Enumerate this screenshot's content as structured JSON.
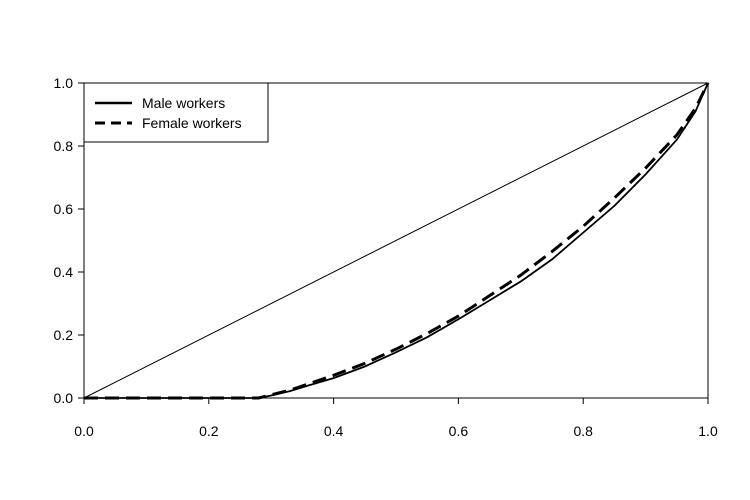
{
  "chart_data": {
    "type": "line",
    "title": "",
    "xlabel": "",
    "ylabel": "",
    "xlim": [
      0.0,
      1.0
    ],
    "ylim": [
      0.0,
      1.0
    ],
    "x_ticks": [
      "0.0",
      "0.2",
      "0.4",
      "0.6",
      "0.8",
      "1.0"
    ],
    "y_ticks": [
      "0.0",
      "0.2",
      "0.4",
      "0.6",
      "0.8",
      "1.0"
    ],
    "grid": false,
    "legend_position": "top-left",
    "reference_line": {
      "x": [
        0.0,
        1.0
      ],
      "y": [
        0.0,
        1.0
      ]
    },
    "series": [
      {
        "name": "Male workers",
        "style": "solid",
        "color": "#000000",
        "x": [
          0.0,
          0.28,
          0.3,
          0.33,
          0.36,
          0.4,
          0.45,
          0.5,
          0.55,
          0.6,
          0.65,
          0.7,
          0.75,
          0.8,
          0.85,
          0.9,
          0.95,
          0.98,
          1.0
        ],
        "y": [
          0.0,
          0.0,
          0.008,
          0.022,
          0.04,
          0.063,
          0.1,
          0.145,
          0.193,
          0.25,
          0.31,
          0.37,
          0.44,
          0.525,
          0.61,
          0.71,
          0.82,
          0.91,
          1.0
        ]
      },
      {
        "name": "Female workers",
        "style": "dashed",
        "color": "#000000",
        "x": [
          0.0,
          0.28,
          0.3,
          0.33,
          0.36,
          0.4,
          0.45,
          0.5,
          0.55,
          0.6,
          0.65,
          0.7,
          0.75,
          0.8,
          0.85,
          0.9,
          0.95,
          0.98,
          1.0
        ],
        "y": [
          0.0,
          0.0,
          0.01,
          0.025,
          0.045,
          0.072,
          0.11,
          0.155,
          0.205,
          0.26,
          0.325,
          0.39,
          0.465,
          0.545,
          0.635,
          0.73,
          0.835,
          0.92,
          1.0
        ]
      }
    ]
  }
}
